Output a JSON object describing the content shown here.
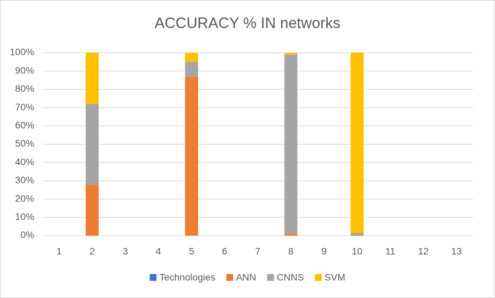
{
  "chart_data": {
    "type": "stacked-bar-percent",
    "title": "ACCURACY % IN networks",
    "categories": [
      "1",
      "2",
      "3",
      "4",
      "5",
      "6",
      "7",
      "8",
      "9",
      "10",
      "11",
      "12",
      "13"
    ],
    "series": [
      {
        "name": "Technologies",
        "color": "#4472c4",
        "values": [
          null,
          null,
          null,
          null,
          null,
          null,
          null,
          null,
          null,
          null,
          null,
          null,
          null
        ]
      },
      {
        "name": "ANN",
        "color": "#ed7d31",
        "values": [
          null,
          28,
          null,
          null,
          87,
          null,
          null,
          1,
          null,
          0.5,
          null,
          null,
          null
        ]
      },
      {
        "name": "CNNS",
        "color": "#a5a5a5",
        "values": [
          null,
          44,
          null,
          null,
          8,
          null,
          null,
          98,
          null,
          1,
          null,
          null,
          null
        ]
      },
      {
        "name": "SVM",
        "color": "#ffc000",
        "values": [
          null,
          28,
          null,
          null,
          5,
          null,
          null,
          1,
          null,
          98.5,
          null,
          null,
          null
        ]
      }
    ],
    "ylim": [
      0,
      100
    ],
    "yticks": [
      {
        "value": 0,
        "label": "0%"
      },
      {
        "value": 10,
        "label": "10%"
      },
      {
        "value": 20,
        "label": "20%"
      },
      {
        "value": 30,
        "label": "30%"
      },
      {
        "value": 40,
        "label": "40%"
      },
      {
        "value": 50,
        "label": "50%"
      },
      {
        "value": 60,
        "label": "60%"
      },
      {
        "value": 70,
        "label": "70%"
      },
      {
        "value": 80,
        "label": "80%"
      },
      {
        "value": 90,
        "label": "90%"
      },
      {
        "value": 100,
        "label": "100%"
      }
    ],
    "grid": true,
    "legend": "bottom"
  }
}
